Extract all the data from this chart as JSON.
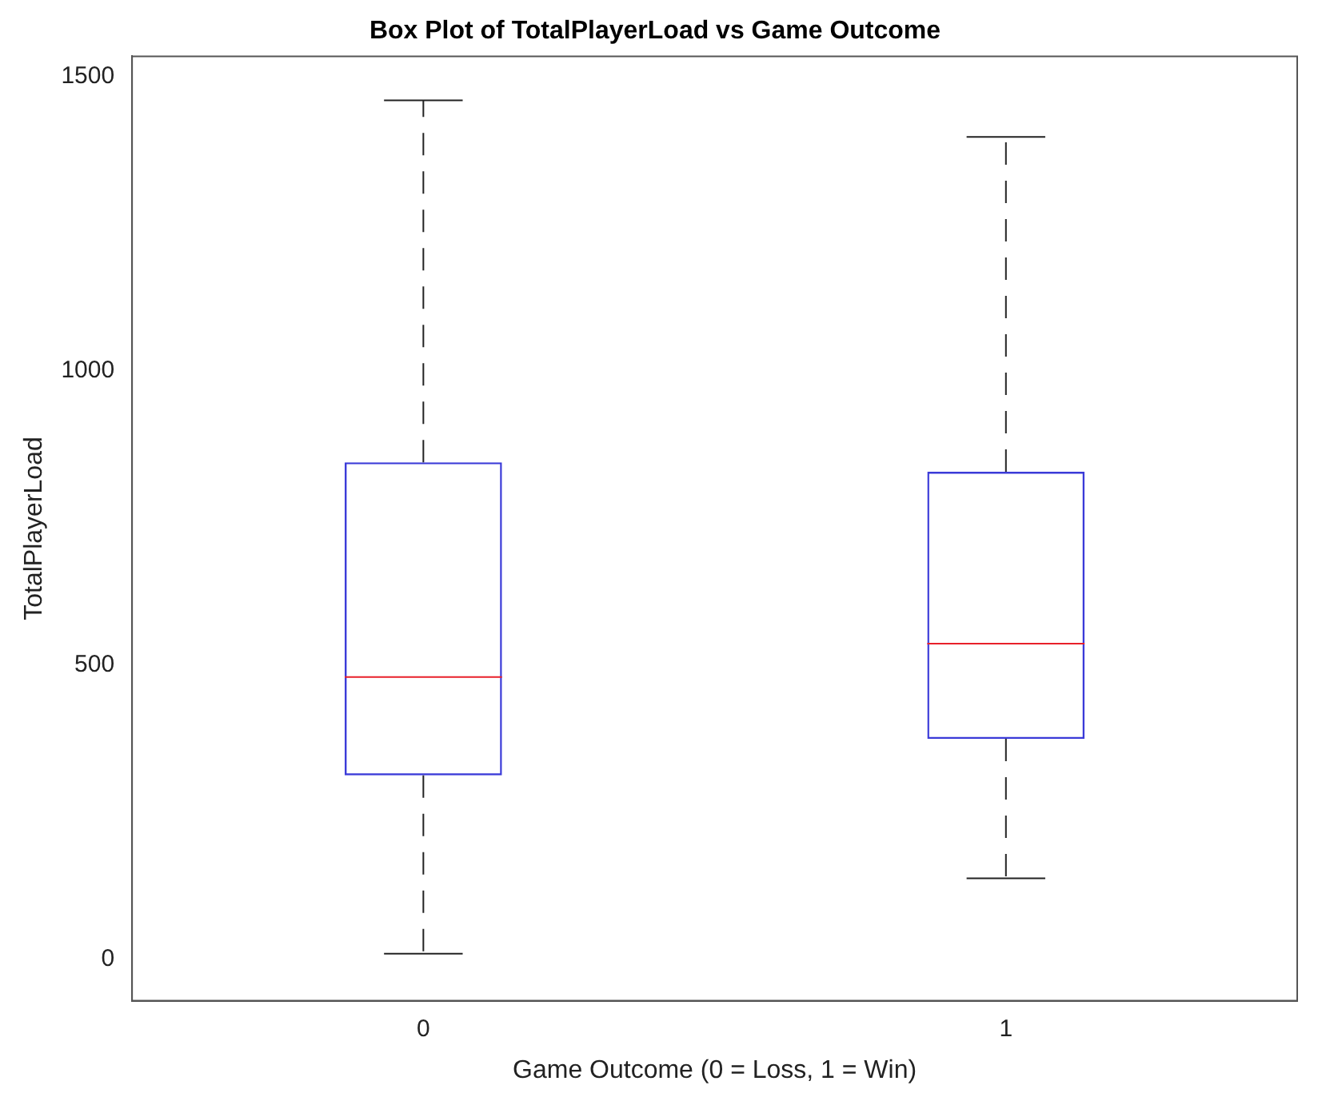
{
  "chart_data": {
    "type": "box",
    "title": "Box Plot of TotalPlayerLoad vs Game Outcome",
    "xlabel": "Game Outcome (0 = Loss, 1 = Win)",
    "ylabel": "TotalPlayerLoad",
    "categories": [
      "0",
      "1"
    ],
    "series": [
      {
        "color": "#3a3ad8",
        "boxes": [
          {
            "low": 10,
            "q1": 313,
            "median": 480,
            "q3": 845,
            "high": 1460
          },
          {
            "low": 138,
            "q1": 375,
            "median": 537,
            "q3": 829,
            "high": 1398
          }
        ]
      }
    ],
    "ylim": [
      -70,
      1535
    ],
    "yticks": [
      0,
      500,
      1000,
      1500
    ],
    "grid": false
  }
}
